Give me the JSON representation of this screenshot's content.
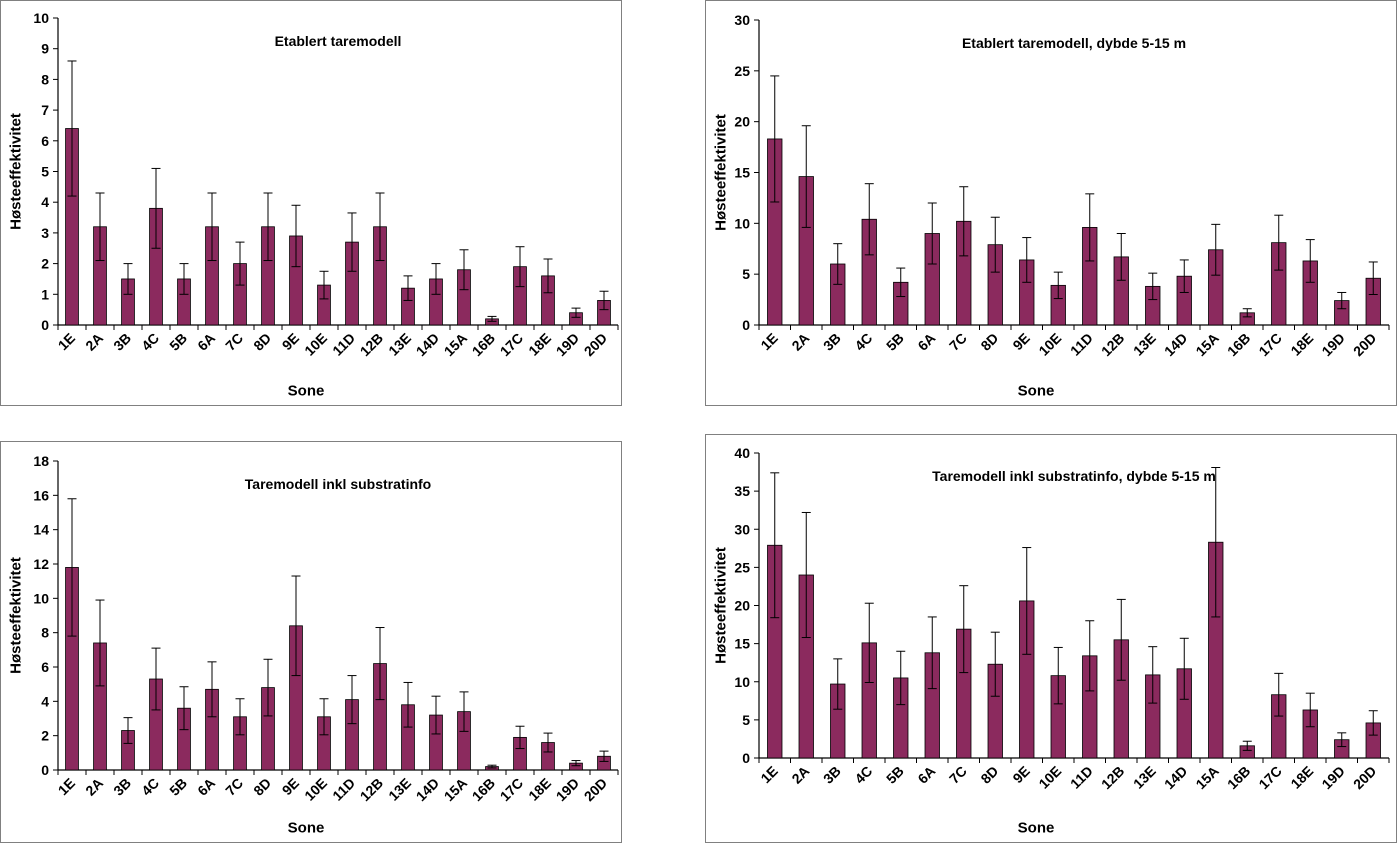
{
  "style": {
    "bar_color": "#8B2A5E",
    "axis_color": "#000000",
    "frame_color": "#808080",
    "background": "#ffffff"
  },
  "chart_data": [
    {
      "type": "bar",
      "title": "Etablert taremodell",
      "xlabel": "Sone",
      "ylabel": "Høsteeffektivitet",
      "categories": [
        "1E",
        "2A",
        "3B",
        "4C",
        "5B",
        "6A",
        "7C",
        "8D",
        "9E",
        "10E",
        "11D",
        "12B",
        "13E",
        "14D",
        "15A",
        "16B",
        "17C",
        "18E",
        "19D",
        "20D"
      ],
      "values": [
        6.4,
        3.2,
        1.5,
        3.8,
        1.5,
        3.2,
        2.0,
        3.2,
        2.9,
        1.3,
        2.7,
        3.2,
        1.2,
        1.5,
        1.8,
        0.2,
        1.9,
        1.6,
        0.4,
        0.8
      ],
      "error_upper": [
        8.6,
        4.3,
        2.0,
        5.1,
        2.0,
        4.3,
        2.7,
        4.3,
        3.9,
        1.75,
        3.65,
        4.3,
        1.6,
        2.0,
        2.45,
        0.28,
        2.55,
        2.15,
        0.55,
        1.1
      ],
      "error_lower": [
        4.2,
        2.1,
        1.0,
        2.5,
        1.0,
        2.1,
        1.3,
        2.1,
        1.9,
        0.85,
        1.75,
        2.1,
        0.8,
        1.0,
        1.15,
        0.12,
        1.25,
        1.05,
        0.25,
        0.5
      ],
      "yticks": [
        "0",
        "1",
        "2",
        "3",
        "4",
        "5",
        "6",
        "7",
        "8",
        "9",
        "10"
      ],
      "ylim": [
        0,
        10
      ],
      "grid": false,
      "legend": "none"
    },
    {
      "type": "bar",
      "title": "Etablert taremodell, dybde 5-15 m",
      "xlabel": "Sone",
      "ylabel": "Høsteeffektivitet",
      "categories": [
        "1E",
        "2A",
        "3B",
        "4C",
        "5B",
        "6A",
        "7C",
        "8D",
        "9E",
        "10E",
        "11D",
        "12B",
        "13E",
        "14D",
        "15A",
        "16B",
        "17C",
        "18E",
        "19D",
        "20D"
      ],
      "values": [
        18.3,
        14.6,
        6.0,
        10.4,
        4.2,
        9.0,
        10.2,
        7.9,
        6.4,
        3.9,
        9.6,
        6.7,
        3.8,
        4.8,
        7.4,
        1.2,
        8.1,
        6.3,
        2.4,
        4.6
      ],
      "error_upper": [
        24.5,
        19.6,
        8.0,
        13.9,
        5.6,
        12.0,
        13.6,
        10.6,
        8.6,
        5.2,
        12.9,
        9.0,
        5.1,
        6.4,
        9.9,
        1.6,
        10.8,
        8.4,
        3.2,
        6.2
      ],
      "error_lower": [
        12.1,
        9.6,
        4.0,
        6.9,
        2.8,
        6.0,
        6.8,
        5.2,
        4.2,
        2.6,
        6.3,
        4.4,
        2.5,
        3.2,
        4.9,
        0.8,
        5.4,
        4.2,
        1.6,
        3.0
      ],
      "yticks": [
        "0",
        "5",
        "10",
        "15",
        "20",
        "25",
        "30"
      ],
      "ylim": [
        0,
        30
      ],
      "grid": false,
      "legend": "none"
    },
    {
      "type": "bar",
      "title": "Taremodell inkl substratinfo",
      "xlabel": "Sone",
      "ylabel": "Høsteeffektivitet",
      "categories": [
        "1E",
        "2A",
        "3B",
        "4C",
        "5B",
        "6A",
        "7C",
        "8D",
        "9E",
        "10E",
        "11D",
        "12B",
        "13E",
        "14D",
        "15A",
        "16B",
        "17C",
        "18E",
        "19D",
        "20D"
      ],
      "values": [
        11.8,
        7.4,
        2.3,
        5.3,
        3.6,
        4.7,
        3.1,
        4.8,
        8.4,
        3.1,
        4.1,
        6.2,
        3.8,
        3.2,
        3.4,
        0.2,
        1.9,
        1.6,
        0.4,
        0.8
      ],
      "error_upper": [
        15.8,
        9.9,
        3.05,
        7.1,
        4.85,
        6.3,
        4.15,
        6.45,
        11.3,
        4.15,
        5.5,
        8.3,
        5.1,
        4.3,
        4.55,
        0.28,
        2.55,
        2.15,
        0.55,
        1.1
      ],
      "error_lower": [
        7.8,
        4.9,
        1.55,
        3.5,
        2.35,
        3.1,
        2.05,
        3.15,
        5.5,
        2.05,
        2.7,
        4.1,
        2.5,
        2.1,
        2.25,
        0.12,
        1.25,
        1.05,
        0.25,
        0.5
      ],
      "yticks": [
        "0",
        "2",
        "4",
        "6",
        "8",
        "10",
        "12",
        "14",
        "16",
        "18"
      ],
      "ylim": [
        0,
        18
      ],
      "grid": false,
      "legend": "none"
    },
    {
      "type": "bar",
      "title": "Taremodell inkl substratinfo, dybde 5-15 m",
      "xlabel": "Sone",
      "ylabel": "Høsteeffektivitet",
      "categories": [
        "1E",
        "2A",
        "3B",
        "4C",
        "5B",
        "6A",
        "7C",
        "8D",
        "9E",
        "10E",
        "11D",
        "12B",
        "13E",
        "14D",
        "15A",
        "16B",
        "17C",
        "18E",
        "19D",
        "20D"
      ],
      "values": [
        27.9,
        24.0,
        9.7,
        15.1,
        10.5,
        13.8,
        16.9,
        12.3,
        20.6,
        10.8,
        13.4,
        15.5,
        10.9,
        11.7,
        28.3,
        1.6,
        8.3,
        6.3,
        2.4,
        4.6
      ],
      "error_upper": [
        37.4,
        32.2,
        13.0,
        20.3,
        14.0,
        18.5,
        22.6,
        16.5,
        27.6,
        14.5,
        18.0,
        20.8,
        14.6,
        15.7,
        38.1,
        2.2,
        11.1,
        8.5,
        3.3,
        6.2
      ],
      "error_lower": [
        18.4,
        15.8,
        6.4,
        9.9,
        7.0,
        9.1,
        11.2,
        8.1,
        13.6,
        7.1,
        8.8,
        10.2,
        7.2,
        7.7,
        18.5,
        1.0,
        5.5,
        4.1,
        1.5,
        3.0
      ],
      "yticks": [
        "0",
        "5",
        "10",
        "15",
        "20",
        "25",
        "30",
        "35",
        "40"
      ],
      "ylim": [
        0,
        40
      ],
      "grid": false,
      "legend": "none"
    }
  ]
}
